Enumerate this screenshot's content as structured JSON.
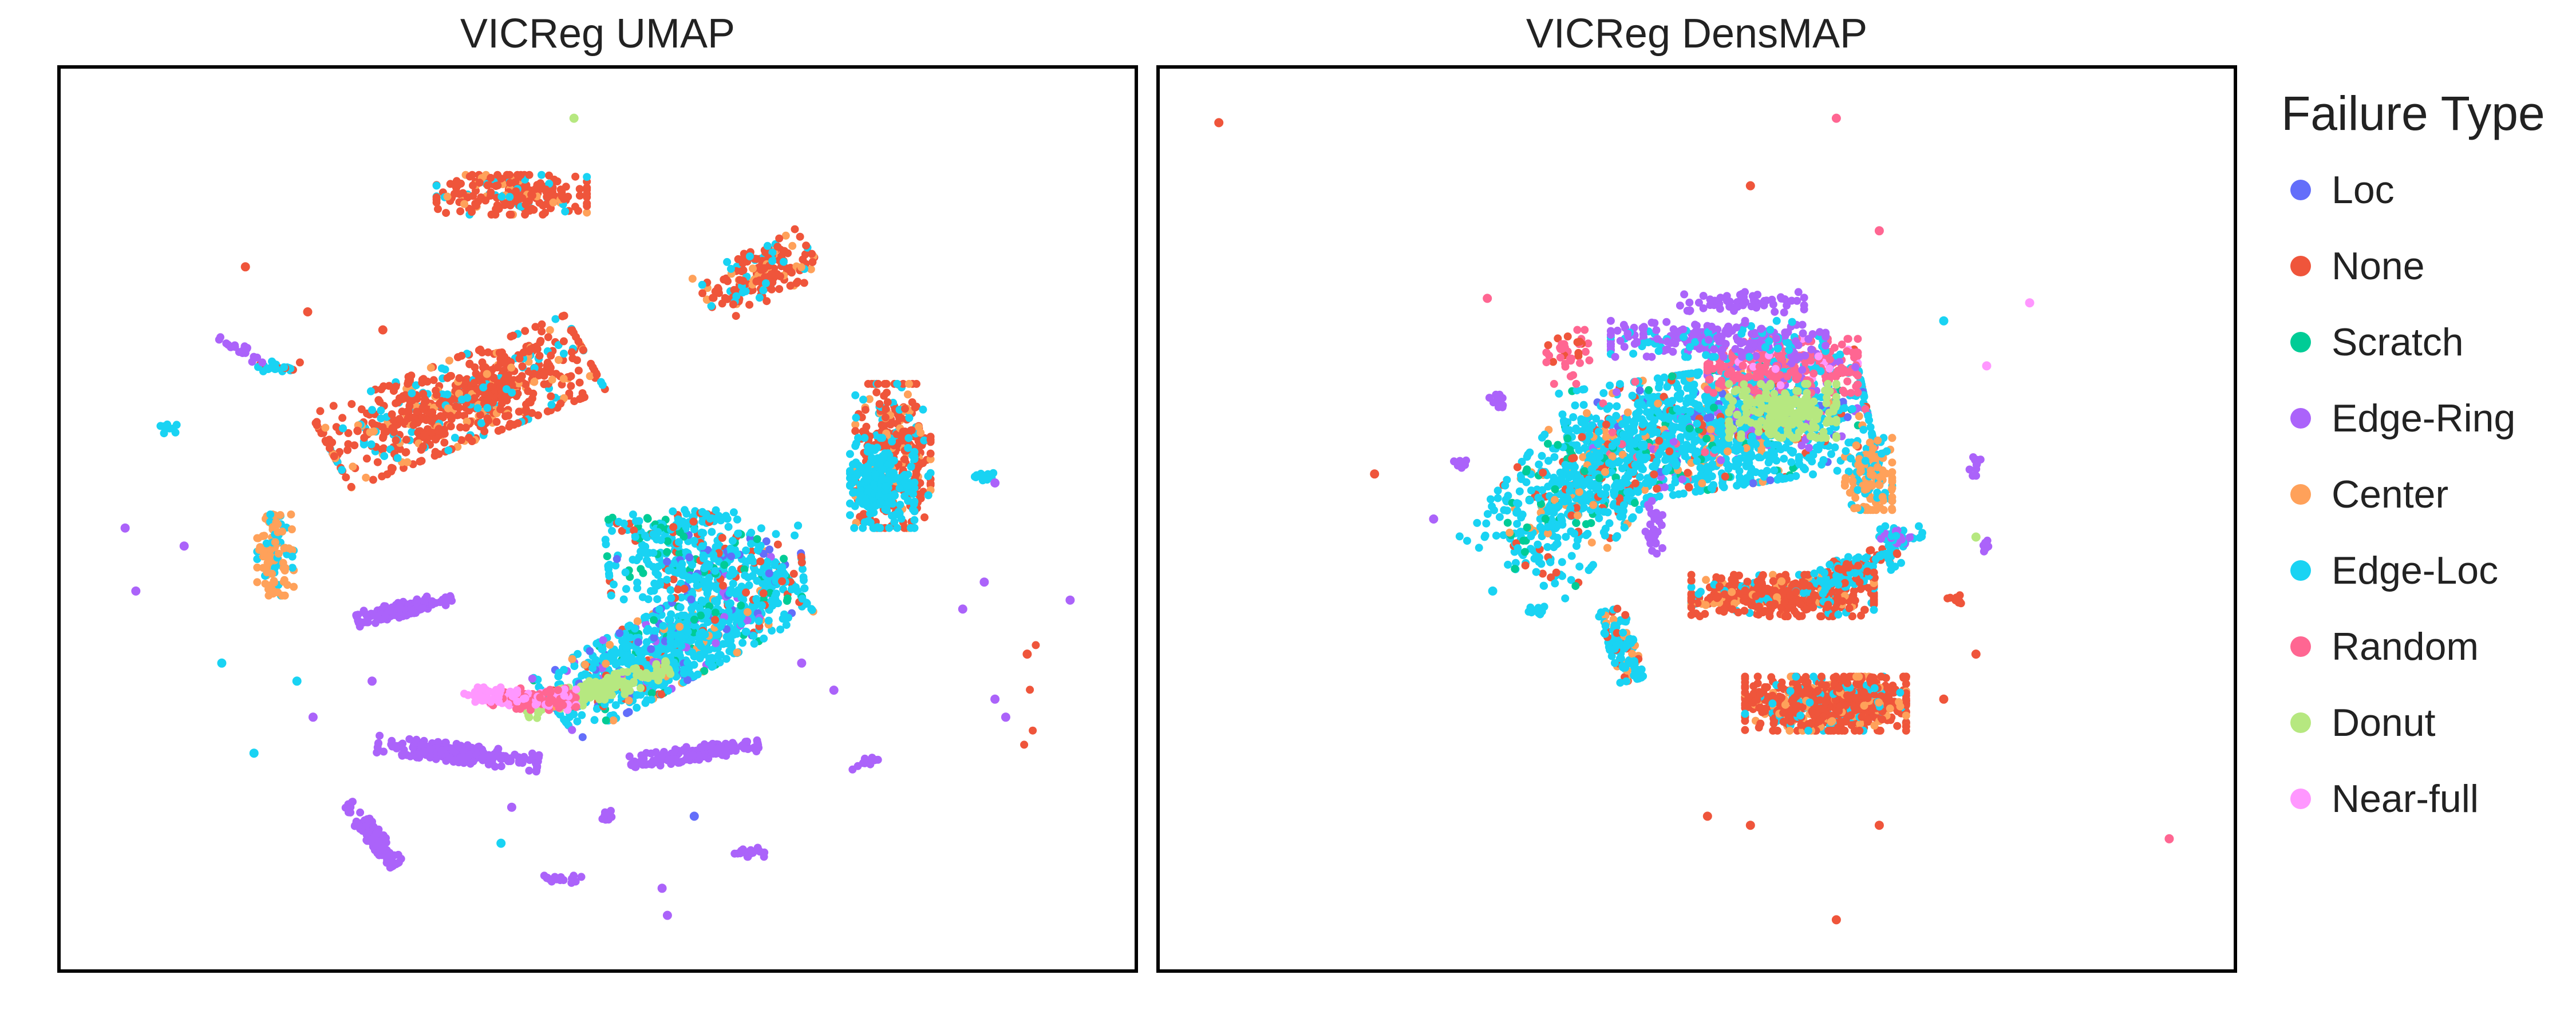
{
  "chart_data": [
    {
      "type": "scatter",
      "title": "VICReg UMAP",
      "xlim": [
        0,
        1
      ],
      "ylim": [
        0,
        1
      ],
      "grid": false,
      "clusters": [
        {
          "cls": "None",
          "cx": 0.42,
          "cy": 0.86,
          "rx": 0.07,
          "ry": 0.022,
          "rot": 0,
          "n": 220,
          "mix": [
            "Edge-Loc",
            "Center"
          ]
        },
        {
          "cls": "None",
          "cx": 0.65,
          "cy": 0.77,
          "rx": 0.028,
          "ry": 0.055,
          "rot": -60,
          "n": 180,
          "mix": [
            "Center",
            "Edge-Loc"
          ]
        },
        {
          "cls": "None",
          "cx": 0.37,
          "cy": 0.63,
          "rx": 0.13,
          "ry": 0.045,
          "rot": 25,
          "n": 700,
          "mix": [
            "Edge-Loc",
            "Center"
          ]
        },
        {
          "cls": "None",
          "cx": 0.775,
          "cy": 0.57,
          "rx": 0.035,
          "ry": 0.08,
          "rot": 0,
          "n": 350,
          "mix": [
            "Edge-Loc",
            "Center"
          ]
        },
        {
          "cls": "Edge-Loc",
          "cx": 0.765,
          "cy": 0.54,
          "rx": 0.03,
          "ry": 0.05,
          "rot": 0,
          "n": 200,
          "mix": []
        },
        {
          "cls": "Center",
          "cx": 0.2,
          "cy": 0.46,
          "rx": 0.017,
          "ry": 0.045,
          "rot": 0,
          "n": 110,
          "mix": [
            "Edge-Loc"
          ]
        },
        {
          "cls": "Edge-Loc",
          "cx": 0.57,
          "cy": 0.36,
          "rx": 0.13,
          "ry": 0.04,
          "rot": 33,
          "n": 900,
          "mix": [
            "None",
            "Loc",
            "Scratch",
            "Center",
            "Edge-Ring"
          ]
        },
        {
          "cls": "Edge-Loc",
          "cx": 0.6,
          "cy": 0.45,
          "rx": 0.09,
          "ry": 0.035,
          "rot": 5,
          "n": 300,
          "mix": [
            "None",
            "Scratch",
            "Loc"
          ]
        },
        {
          "cls": "Donut",
          "cx": 0.5,
          "cy": 0.31,
          "rx": 0.07,
          "ry": 0.012,
          "rot": 18,
          "n": 180,
          "mix": []
        },
        {
          "cls": "Random",
          "cx": 0.44,
          "cy": 0.3,
          "rx": 0.04,
          "ry": 0.012,
          "rot": 0,
          "n": 100,
          "mix": [
            "Near-full"
          ]
        },
        {
          "cls": "Near-full",
          "cx": 0.4,
          "cy": 0.305,
          "rx": 0.025,
          "ry": 0.008,
          "rot": 0,
          "n": 50,
          "mix": []
        },
        {
          "cls": "Edge-Ring",
          "cx": 0.32,
          "cy": 0.4,
          "rx": 0.045,
          "ry": 0.008,
          "rot": 15,
          "n": 150,
          "mix": []
        },
        {
          "cls": "Edge-Ring",
          "cx": 0.37,
          "cy": 0.24,
          "rx": 0.075,
          "ry": 0.01,
          "rot": -8,
          "n": 200,
          "mix": []
        },
        {
          "cls": "Edge-Ring",
          "cx": 0.59,
          "cy": 0.24,
          "rx": 0.06,
          "ry": 0.008,
          "rot": 10,
          "n": 150,
          "mix": []
        },
        {
          "cls": "Edge-Ring",
          "cx": 0.29,
          "cy": 0.15,
          "rx": 0.04,
          "ry": 0.008,
          "rot": -55,
          "n": 120,
          "mix": []
        },
        {
          "cls": "None",
          "cx": 0.9,
          "cy": 0.3,
          "rx": 0.008,
          "ry": 0.06,
          "rot": 0,
          "n": 4,
          "mix": []
        }
      ],
      "small_clusters": [
        {
          "cls": "Edge-Loc",
          "cx": 0.2,
          "cy": 0.67,
          "rx": 0.025,
          "ry": 0.006,
          "rot": 0,
          "n": 25,
          "mix": [
            "None"
          ]
        },
        {
          "cls": "Edge-Ring",
          "cx": 0.165,
          "cy": 0.69,
          "rx": 0.03,
          "ry": 0.005,
          "rot": -35,
          "n": 20,
          "mix": []
        },
        {
          "cls": "Edge-Loc",
          "cx": 0.1,
          "cy": 0.6,
          "rx": 0.008,
          "ry": 0.005,
          "rot": 0,
          "n": 10,
          "mix": []
        },
        {
          "cls": "Edge-Loc",
          "cx": 0.86,
          "cy": 0.545,
          "rx": 0.012,
          "ry": 0.006,
          "rot": 0,
          "n": 14,
          "mix": []
        },
        {
          "cls": "Edge-Ring",
          "cx": 0.47,
          "cy": 0.1,
          "rx": 0.02,
          "ry": 0.004,
          "rot": 0,
          "n": 20,
          "mix": []
        },
        {
          "cls": "Edge-Ring",
          "cx": 0.64,
          "cy": 0.13,
          "rx": 0.02,
          "ry": 0.005,
          "rot": 0,
          "n": 20,
          "mix": []
        },
        {
          "cls": "Edge-Ring",
          "cx": 0.75,
          "cy": 0.23,
          "rx": 0.015,
          "ry": 0.004,
          "rot": 30,
          "n": 14,
          "mix": []
        },
        {
          "cls": "Edge-Ring",
          "cx": 0.51,
          "cy": 0.17,
          "rx": 0.008,
          "ry": 0.006,
          "rot": 0,
          "n": 10,
          "mix": []
        },
        {
          "cls": "Edge-Loc",
          "cx": 0.55,
          "cy": 0.49,
          "rx": 0.04,
          "ry": 0.015,
          "rot": 0,
          "n": 60,
          "mix": [
            "None",
            "Scratch"
          ]
        },
        {
          "cls": "Edge-Loc",
          "cx": 0.6,
          "cy": 0.5,
          "rx": 0.03,
          "ry": 0.01,
          "rot": 0,
          "n": 40,
          "mix": [
            "None"
          ]
        }
      ],
      "outliers": [
        {
          "cls": "Donut",
          "x": 0.478,
          "y": 0.945
        },
        {
          "cls": "None",
          "x": 0.172,
          "y": 0.78
        },
        {
          "cls": "None",
          "x": 0.23,
          "y": 0.73
        },
        {
          "cls": "None",
          "x": 0.3,
          "y": 0.71
        },
        {
          "cls": "Edge-Ring",
          "x": 0.06,
          "y": 0.49
        },
        {
          "cls": "Edge-Ring",
          "x": 0.07,
          "y": 0.42
        },
        {
          "cls": "Edge-Ring",
          "x": 0.115,
          "y": 0.47
        },
        {
          "cls": "Edge-Loc",
          "x": 0.15,
          "y": 0.34
        },
        {
          "cls": "Edge-Loc",
          "x": 0.22,
          "y": 0.32
        },
        {
          "cls": "Edge-Ring",
          "x": 0.29,
          "y": 0.32
        },
        {
          "cls": "Edge-Ring",
          "x": 0.235,
          "y": 0.28
        },
        {
          "cls": "Edge-Loc",
          "x": 0.18,
          "y": 0.24
        },
        {
          "cls": "Edge-Ring",
          "x": 0.86,
          "y": 0.43
        },
        {
          "cls": "Edge-Ring",
          "x": 0.94,
          "y": 0.41
        },
        {
          "cls": "None",
          "x": 0.9,
          "y": 0.35
        },
        {
          "cls": "Edge-Ring",
          "x": 0.69,
          "y": 0.34
        },
        {
          "cls": "Edge-Ring",
          "x": 0.72,
          "y": 0.31
        },
        {
          "cls": "Edge-Ring",
          "x": 0.87,
          "y": 0.3
        },
        {
          "cls": "Edge-Ring",
          "x": 0.88,
          "y": 0.28
        },
        {
          "cls": "Edge-Ring",
          "x": 0.42,
          "y": 0.18
        },
        {
          "cls": "Edge-Loc",
          "x": 0.41,
          "y": 0.14
        },
        {
          "cls": "Edge-Ring",
          "x": 0.56,
          "y": 0.09
        },
        {
          "cls": "Edge-Ring",
          "x": 0.565,
          "y": 0.06
        },
        {
          "cls": "Loc",
          "x": 0.59,
          "y": 0.17
        },
        {
          "cls": "Edge-Ring",
          "x": 0.87,
          "y": 0.54
        },
        {
          "cls": "Edge-Ring",
          "x": 0.84,
          "y": 0.4
        }
      ]
    },
    {
      "type": "scatter",
      "title": "VICReg DensMAP",
      "xlim": [
        0,
        1
      ],
      "ylim": [
        0,
        1
      ],
      "grid": false,
      "clusters": [
        {
          "cls": "Edge-Loc",
          "cx": 0.52,
          "cy": 0.6,
          "rx": 0.14,
          "ry": 0.065,
          "rot": 10,
          "n": 1300,
          "mix": [
            "None",
            "Random",
            "Loc",
            "Center",
            "Scratch",
            "Edge-Ring"
          ]
        },
        {
          "cls": "Edge-Loc",
          "cx": 0.38,
          "cy": 0.52,
          "rx": 0.06,
          "ry": 0.09,
          "rot": -35,
          "n": 450,
          "mix": [
            "None",
            "Scratch",
            "Center"
          ]
        },
        {
          "cls": "Random",
          "cx": 0.58,
          "cy": 0.67,
          "rx": 0.07,
          "ry": 0.03,
          "rot": 0,
          "n": 300,
          "mix": [
            "Edge-Ring",
            "Near-full",
            "Edge-Loc"
          ]
        },
        {
          "cls": "Donut",
          "cx": 0.58,
          "cy": 0.62,
          "rx": 0.05,
          "ry": 0.03,
          "rot": 0,
          "n": 200,
          "mix": []
        },
        {
          "cls": "Edge-Ring",
          "cx": 0.52,
          "cy": 0.7,
          "rx": 0.1,
          "ry": 0.02,
          "rot": 0,
          "n": 250,
          "mix": [
            "Edge-Loc"
          ]
        },
        {
          "cls": "Center",
          "cx": 0.66,
          "cy": 0.55,
          "rx": 0.022,
          "ry": 0.04,
          "rot": 0,
          "n": 150,
          "mix": [
            "Edge-Loc"
          ]
        },
        {
          "cls": "None",
          "cx": 0.58,
          "cy": 0.415,
          "rx": 0.085,
          "ry": 0.023,
          "rot": 0,
          "n": 450,
          "mix": [
            "Edge-Loc",
            "Center"
          ]
        },
        {
          "cls": "Edge-Loc",
          "cx": 0.65,
          "cy": 0.445,
          "rx": 0.04,
          "ry": 0.015,
          "rot": 20,
          "n": 120,
          "mix": [
            "None"
          ]
        },
        {
          "cls": "None",
          "cx": 0.62,
          "cy": 0.295,
          "rx": 0.075,
          "ry": 0.03,
          "rot": 0,
          "n": 700,
          "mix": [
            "Edge-Loc",
            "Center"
          ]
        },
        {
          "cls": "Edge-Loc",
          "cx": 0.43,
          "cy": 0.36,
          "rx": 0.012,
          "ry": 0.04,
          "rot": 15,
          "n": 120,
          "mix": [
            "None",
            "Center"
          ]
        },
        {
          "cls": "Edge-Ring",
          "cx": 0.46,
          "cy": 0.49,
          "rx": 0.008,
          "ry": 0.03,
          "rot": 0,
          "n": 30,
          "mix": []
        },
        {
          "cls": "Random",
          "cx": 0.38,
          "cy": 0.68,
          "rx": 0.02,
          "ry": 0.03,
          "rot": 0,
          "n": 40,
          "mix": [
            "None"
          ]
        }
      ],
      "small_clusters": [
        {
          "cls": "Edge-Ring",
          "cx": 0.315,
          "cy": 0.63,
          "rx": 0.008,
          "ry": 0.008,
          "rot": 0,
          "n": 14,
          "mix": []
        },
        {
          "cls": "Edge-Ring",
          "cx": 0.28,
          "cy": 0.56,
          "rx": 0.006,
          "ry": 0.006,
          "rot": 0,
          "n": 8,
          "mix": []
        },
        {
          "cls": "Edge-Ring",
          "cx": 0.76,
          "cy": 0.56,
          "rx": 0.006,
          "ry": 0.012,
          "rot": 0,
          "n": 12,
          "mix": []
        },
        {
          "cls": "Edge-Ring",
          "cx": 0.77,
          "cy": 0.47,
          "rx": 0.006,
          "ry": 0.006,
          "rot": 0,
          "n": 10,
          "mix": []
        },
        {
          "cls": "Edge-Loc",
          "cx": 0.69,
          "cy": 0.48,
          "rx": 0.02,
          "ry": 0.012,
          "rot": 0,
          "n": 40,
          "mix": [
            "Edge-Ring"
          ]
        },
        {
          "cls": "Edge-Loc",
          "cx": 0.35,
          "cy": 0.4,
          "rx": 0.008,
          "ry": 0.006,
          "rot": 0,
          "n": 10,
          "mix": []
        },
        {
          "cls": "Edge-Ring",
          "cx": 0.54,
          "cy": 0.74,
          "rx": 0.06,
          "ry": 0.012,
          "rot": 0,
          "n": 60,
          "mix": []
        },
        {
          "cls": "None",
          "cx": 0.74,
          "cy": 0.41,
          "rx": 0.008,
          "ry": 0.006,
          "rot": 0,
          "n": 10,
          "mix": []
        }
      ],
      "outliers": [
        {
          "cls": "None",
          "x": 0.055,
          "y": 0.94
        },
        {
          "cls": "Random",
          "x": 0.63,
          "y": 0.945
        },
        {
          "cls": "None",
          "x": 0.55,
          "y": 0.87
        },
        {
          "cls": "Random",
          "x": 0.67,
          "y": 0.82
        },
        {
          "cls": "Near-full",
          "x": 0.81,
          "y": 0.74
        },
        {
          "cls": "Edge-Loc",
          "x": 0.73,
          "y": 0.72
        },
        {
          "cls": "None",
          "x": 0.2,
          "y": 0.55
        },
        {
          "cls": "Edge-Ring",
          "x": 0.255,
          "y": 0.5
        },
        {
          "cls": "Random",
          "x": 0.305,
          "y": 0.745
        },
        {
          "cls": "Edge-Loc",
          "x": 0.31,
          "y": 0.42
        },
        {
          "cls": "None",
          "x": 0.76,
          "y": 0.35
        },
        {
          "cls": "None",
          "x": 0.73,
          "y": 0.3
        },
        {
          "cls": "None",
          "x": 0.51,
          "y": 0.17
        },
        {
          "cls": "None",
          "x": 0.55,
          "y": 0.16
        },
        {
          "cls": "None",
          "x": 0.67,
          "y": 0.16
        },
        {
          "cls": "None",
          "x": 0.63,
          "y": 0.055
        },
        {
          "cls": "Random",
          "x": 0.94,
          "y": 0.145
        },
        {
          "cls": "Donut",
          "x": 0.76,
          "y": 0.48
        },
        {
          "cls": "Near-full",
          "x": 0.77,
          "y": 0.67
        }
      ]
    }
  ],
  "legend": {
    "title": "Failure Type",
    "placement": "right",
    "items": [
      {
        "label": "Loc",
        "color": "#636efa"
      },
      {
        "label": "None",
        "color": "#ef553b"
      },
      {
        "label": "Scratch",
        "color": "#00cc96"
      },
      {
        "label": "Edge-Ring",
        "color": "#ab63fa"
      },
      {
        "label": "Center",
        "color": "#ffa15a"
      },
      {
        "label": "Edge-Loc",
        "color": "#19d3f3"
      },
      {
        "label": "Random",
        "color": "#ff6692"
      },
      {
        "label": "Donut",
        "color": "#b6e880"
      },
      {
        "label": "Near-full",
        "color": "#ff97ff"
      }
    ]
  }
}
